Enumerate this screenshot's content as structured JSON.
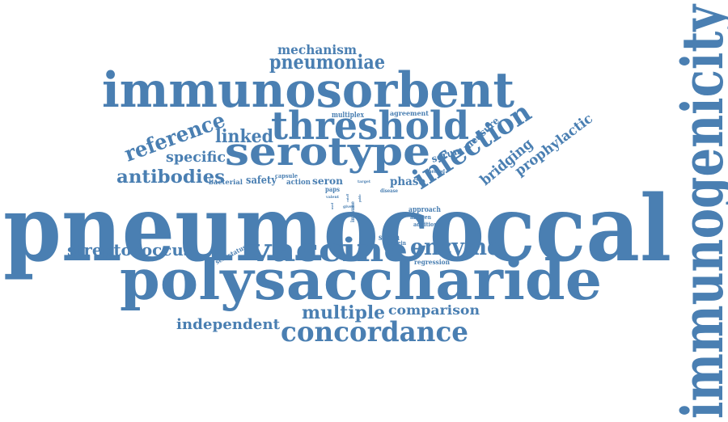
{
  "color": "#4a7fb2",
  "words": [
    "pneumococcal",
    "immunogenicity",
    "polysaccharide",
    "immunosorbent",
    "serotype",
    "threshold",
    "vaccine",
    "concordance",
    "pneumoniae",
    "infection",
    "enzyme",
    "reference",
    "multiple",
    "mechanism",
    "streptococcus",
    "linked",
    "antibodies",
    "specific",
    "bridging",
    "prophylactic",
    "independent",
    "comparison",
    "serum",
    "measure",
    "phase",
    "seron",
    "safety",
    "bacterial",
    "action",
    "capsule",
    "multiplex",
    "agreement",
    "approach",
    "antigen",
    "addition",
    "strain",
    "protein",
    "regression",
    "serostatus",
    "paps",
    "valent",
    "method",
    "target",
    "disease",
    "immune",
    "given",
    "cutoff",
    "public",
    "used"
  ]
}
